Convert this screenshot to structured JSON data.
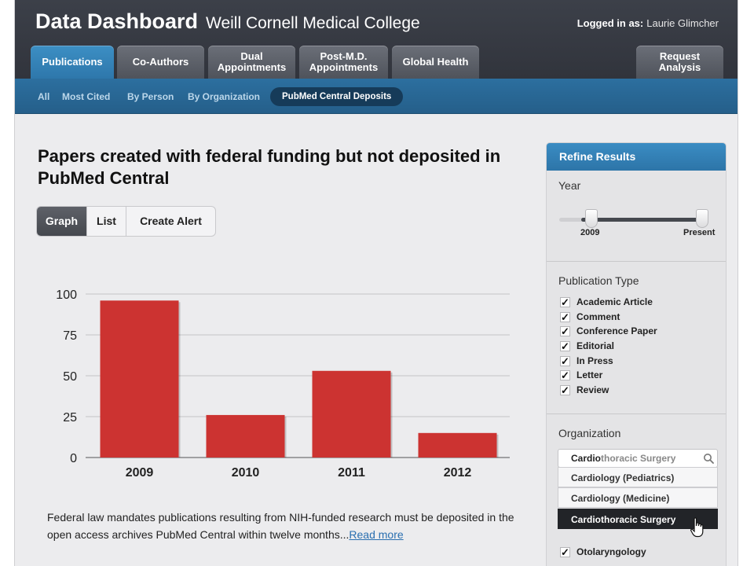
{
  "header": {
    "app_title": "Data Dashboard",
    "institution": "Weill Cornell Medical College",
    "logged_in_label": "Logged in as:",
    "user_name": "Laurie Glimcher"
  },
  "tabs": [
    {
      "label": "Publications",
      "active": true
    },
    {
      "label": "Co-Authors",
      "active": false
    },
    {
      "label": "Dual\nAppointments",
      "active": false
    },
    {
      "label": "Post-M.D.\nAppointments",
      "active": false
    },
    {
      "label": "Global Health",
      "active": false
    },
    {
      "label": "Request\nAnalysis",
      "active": false
    }
  ],
  "subnav": [
    {
      "label": "All",
      "active": false
    },
    {
      "label": "Most Cited",
      "active": false
    },
    {
      "label": "By Person",
      "active": false
    },
    {
      "label": "By Organization",
      "active": false
    },
    {
      "label": "PubMed Central Deposits",
      "active": true
    }
  ],
  "main": {
    "title": "Papers created with federal funding but not deposited in PubMed Central",
    "view_buttons": [
      {
        "label": "Graph",
        "active": true
      },
      {
        "label": "List",
        "active": false
      },
      {
        "label": "Create Alert",
        "active": false
      }
    ],
    "description": "Federal law mandates publications resulting from NIH-funded research must be deposited in the open access archives PubMed Central within twelve months...",
    "read_more": "Read more"
  },
  "chart_data": {
    "type": "bar",
    "categories": [
      "2009",
      "2010",
      "2011",
      "2012"
    ],
    "values": [
      96,
      26,
      53,
      15
    ],
    "ylim": [
      0,
      100
    ],
    "yticks": [
      0,
      25,
      50,
      75,
      100
    ],
    "grid": true,
    "bar_color": "#cc3331"
  },
  "panel": {
    "title": "Refine Results",
    "year": {
      "label": "Year",
      "start_label": "2009",
      "end_label": "Present"
    },
    "pub_type": {
      "label": "Publication Type",
      "items": [
        "Academic Article",
        "Comment",
        "Conference Paper",
        "Editorial",
        "In Press",
        "Letter",
        "Review"
      ],
      "check_mark": "✓"
    },
    "organization": {
      "label": "Organization",
      "search_typed": "Cardio",
      "search_rest": "thoracic Surgery",
      "options": [
        "Cardiology (Pediatrics)",
        "Cardiology (Medicine)",
        "Cardiothoracic Surgery"
      ],
      "selected_index": 2,
      "checked_item": "Otolaryngology"
    }
  },
  "colors": {
    "accent_blue": "#2e77ab",
    "header_dark": "#33363e",
    "bar_red": "#cc3331"
  }
}
